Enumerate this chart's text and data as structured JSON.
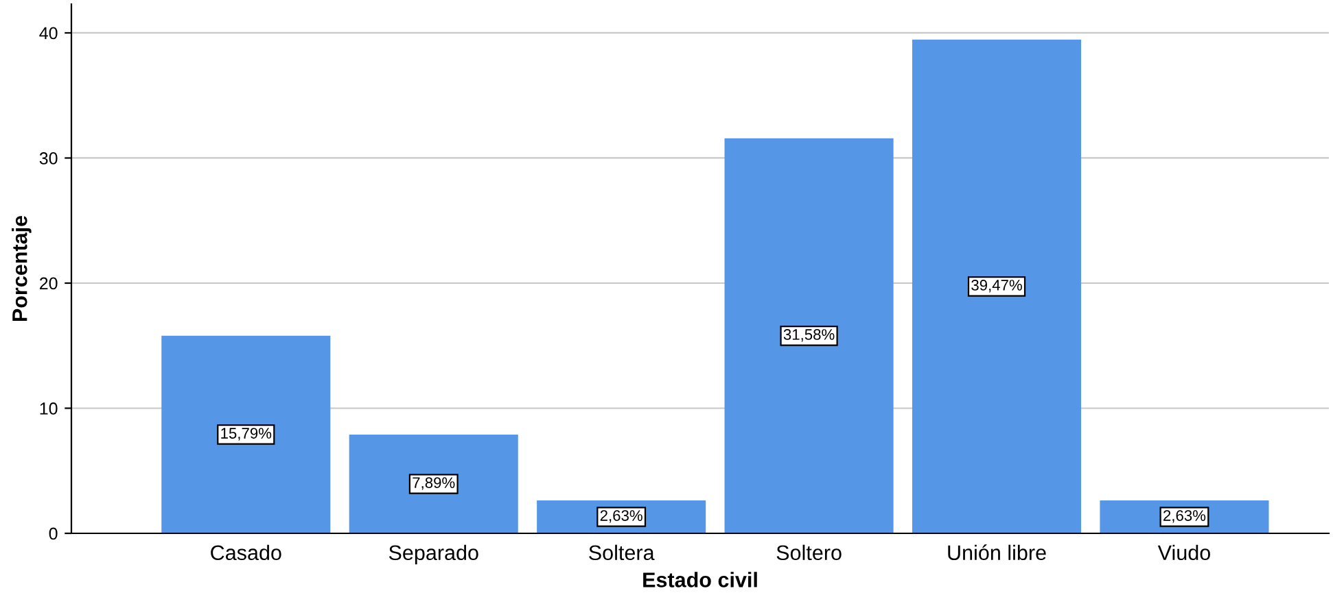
{
  "chart_data": {
    "type": "bar",
    "xlabel": "Estado civil",
    "ylabel": "Porcentaje",
    "categories": [
      "Casado",
      "Separado",
      "Soltera",
      "Soltero",
      "Unión libre",
      "Viudo"
    ],
    "values": [
      15.79,
      7.89,
      2.63,
      31.58,
      39.47,
      2.63
    ],
    "value_labels": [
      "15,79%",
      "7,89%",
      "2,63%",
      "31,58%",
      "39,47%",
      "2,63%"
    ],
    "color": "#5596e6",
    "ylim": [
      0,
      42.3
    ],
    "yticks": [
      0,
      10,
      20,
      30,
      40
    ],
    "grid": "y"
  }
}
